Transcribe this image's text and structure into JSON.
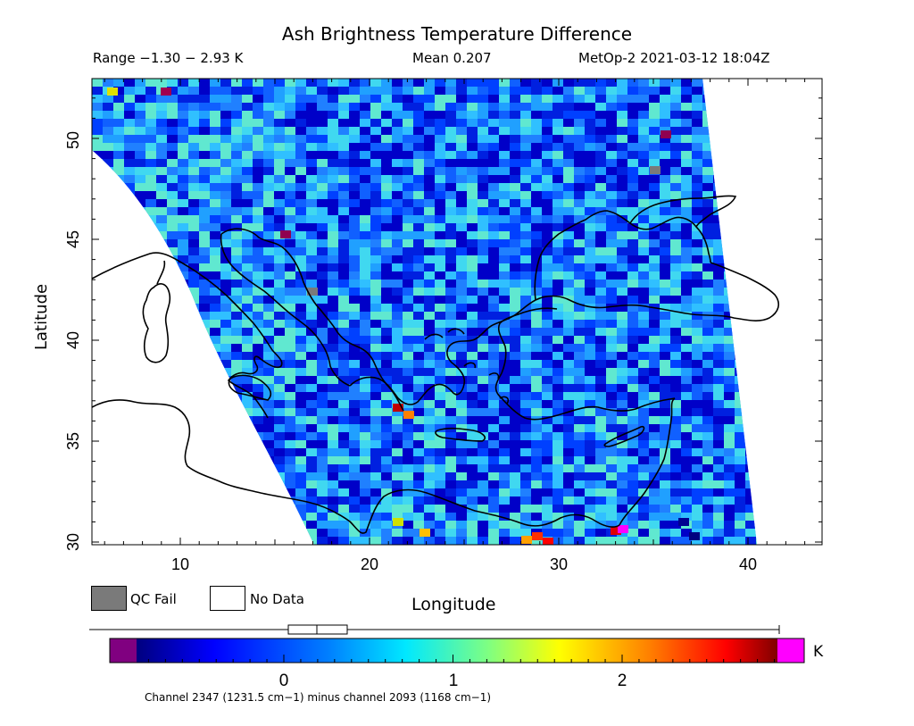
{
  "title": "Ash Brightness Temperature Difference",
  "header": {
    "range": "Range −1.30 − 2.93 K",
    "mean": "Mean 0.207",
    "satellite": "MetOp-2 2021-03-12 18:04Z"
  },
  "axes": {
    "ylabel": "Latitude",
    "xlabel": "Longitude",
    "x_ticks": [
      "10",
      "20",
      "30",
      "40"
    ],
    "y_ticks": [
      "30",
      "35",
      "40",
      "45",
      "50"
    ]
  },
  "legend": {
    "qc_fail": "QC Fail",
    "no_data": "No Data",
    "qc_color": "#7a7a7a"
  },
  "colorbar": {
    "unit": "K",
    "ticks": [
      "0",
      "1",
      "2"
    ],
    "min_k": -0.9,
    "max_k": 2.93,
    "low_color": "#800080",
    "high_color": "#ff00ff"
  },
  "footer": "Channel 2347 (1231.5 cm−1) minus channel 2093 (1168 cm−1)",
  "map": {
    "lon_range": [
      5,
      44
    ],
    "lat_range": [
      29.5,
      53
    ],
    "mean_value_k": 0.207
  }
}
